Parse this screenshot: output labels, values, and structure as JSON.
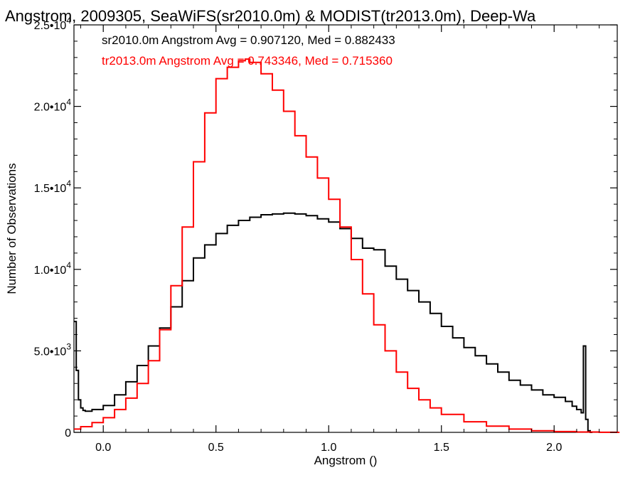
{
  "chart_data": {
    "type": "line",
    "title": "Angstrom, 2009305, SeaWiFS(sr2010.0m) & MODIST(tr2013.0m), Deep-Wa",
    "xlabel": "Angstrom ()",
    "ylabel": "Number of Observations",
    "xlim": [
      -0.13,
      2.28
    ],
    "ylim": [
      0,
      25000
    ],
    "grid": false,
    "x_ticks": [
      {
        "value": 0.0,
        "label": "0.0"
      },
      {
        "value": 0.5,
        "label": "0.5"
      },
      {
        "value": 1.0,
        "label": "1.0"
      },
      {
        "value": 1.5,
        "label": "1.5"
      },
      {
        "value": 2.0,
        "label": "2.0"
      }
    ],
    "y_ticks": [
      {
        "value": 0,
        "base": "0",
        "exp": ""
      },
      {
        "value": 5000,
        "base": "5.0•10",
        "exp": "3"
      },
      {
        "value": 10000,
        "base": "1.0•10",
        "exp": "4"
      },
      {
        "value": 15000,
        "base": "1.5•10",
        "exp": "4"
      },
      {
        "value": 20000,
        "base": "2.0•10",
        "exp": "4"
      },
      {
        "value": 25000,
        "base": "2.5•10",
        "exp": "4"
      }
    ],
    "annotations": [
      {
        "text": "sr2010.0m Angstrom Avg = 0.907120, Med = 0.882433",
        "color": "#000000"
      },
      {
        "text": "tr2013.0m Angstrom Avg = 0.743346, Med = 0.715360",
        "color": "#ff0000"
      }
    ],
    "series": [
      {
        "color": "#000000",
        "x": [
          -0.13,
          -0.12,
          -0.11,
          -0.1,
          -0.09,
          -0.08,
          -0.05,
          0.0,
          0.05,
          0.1,
          0.15,
          0.2,
          0.25,
          0.3,
          0.35,
          0.4,
          0.45,
          0.5,
          0.55,
          0.6,
          0.65,
          0.7,
          0.75,
          0.8,
          0.85,
          0.9,
          0.95,
          1.0,
          1.05,
          1.1,
          1.15,
          1.2,
          1.25,
          1.3,
          1.35,
          1.4,
          1.45,
          1.5,
          1.55,
          1.6,
          1.65,
          1.7,
          1.75,
          1.8,
          1.85,
          1.9,
          1.95,
          2.0,
          2.05,
          2.08,
          2.1,
          2.12,
          2.13,
          2.14,
          2.15,
          2.16
        ],
        "y": [
          6800,
          3800,
          2000,
          1500,
          1350,
          1300,
          1400,
          1650,
          2300,
          3100,
          4100,
          5300,
          6400,
          7700,
          9300,
          10700,
          11500,
          12200,
          12700,
          13000,
          13200,
          13350,
          13400,
          13450,
          13400,
          13300,
          13100,
          12900,
          12500,
          11900,
          11300,
          11200,
          10200,
          9400,
          8700,
          8000,
          7300,
          6500,
          5800,
          5200,
          4700,
          4200,
          3700,
          3200,
          2900,
          2600,
          2300,
          2150,
          1900,
          1600,
          1400,
          1200,
          5300,
          800,
          100,
          0
        ]
      },
      {
        "color": "#ff0000",
        "x": [
          -0.13,
          -0.1,
          -0.05,
          0.0,
          0.05,
          0.1,
          0.15,
          0.2,
          0.25,
          0.3,
          0.35,
          0.4,
          0.45,
          0.5,
          0.55,
          0.6,
          0.63,
          0.65,
          0.7,
          0.75,
          0.8,
          0.85,
          0.9,
          0.95,
          1.0,
          1.05,
          1.1,
          1.15,
          1.2,
          1.25,
          1.3,
          1.35,
          1.4,
          1.45,
          1.5,
          1.6,
          1.7,
          1.8,
          1.9,
          2.0,
          2.1,
          2.2,
          2.28
        ],
        "y": [
          200,
          350,
          600,
          900,
          1400,
          2100,
          3000,
          4400,
          6300,
          9000,
          12600,
          16600,
          19600,
          21700,
          22400,
          22800,
          22900,
          22700,
          22000,
          21000,
          19700,
          18200,
          16900,
          15600,
          14300,
          12600,
          10600,
          8500,
          6600,
          5000,
          3700,
          2700,
          2000,
          1500,
          1100,
          650,
          380,
          200,
          100,
          50,
          20,
          5,
          0
        ]
      }
    ]
  }
}
